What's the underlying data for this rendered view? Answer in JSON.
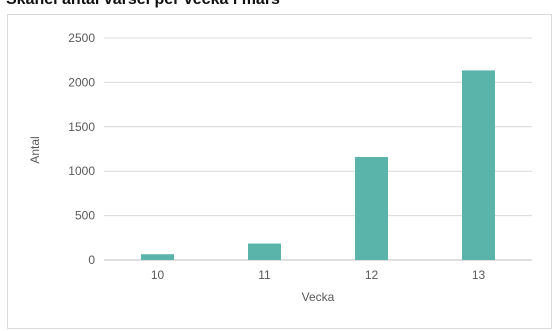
{
  "chart_data": {
    "type": "bar",
    "title": "Skånel antal varsel per vecka i mars",
    "categories": [
      "10",
      "11",
      "12",
      "13"
    ],
    "series": [
      {
        "values": [
          65,
          185,
          1160,
          2135
        ]
      }
    ],
    "xlabel": "Vecka",
    "ylabel": "Antal",
    "ylim": [
      0,
      2500
    ],
    "yticks": [
      0,
      500,
      1000,
      1500,
      2000,
      2500
    ],
    "grid": true,
    "legend": "none",
    "colors": {
      "bar": "#5bb4aa",
      "grid": "#d9d9d9",
      "axis": "#bfbfbf"
    }
  }
}
